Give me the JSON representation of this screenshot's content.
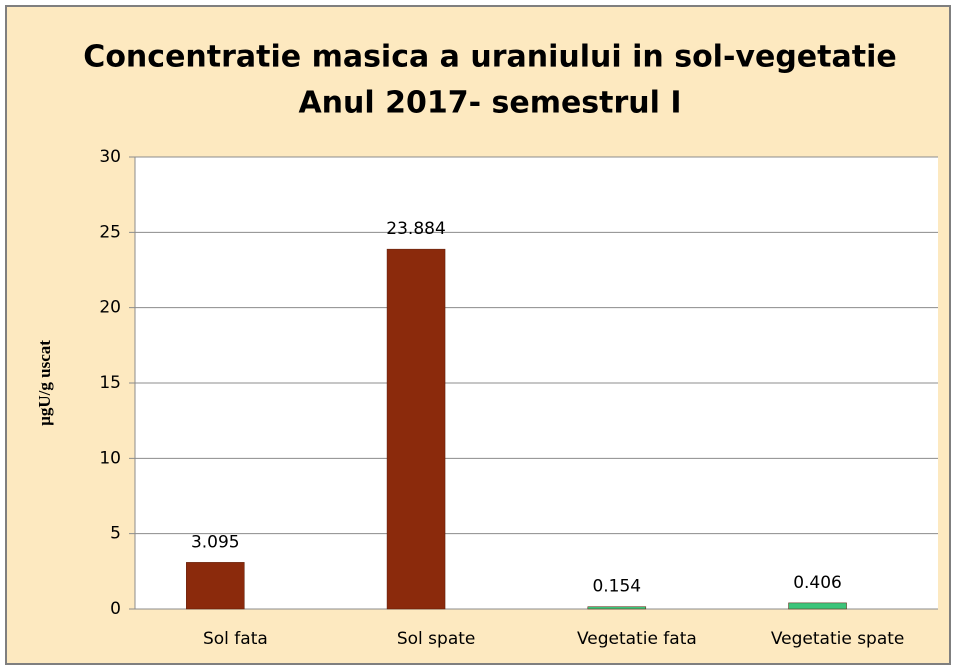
{
  "chart_data": {
    "type": "bar",
    "title": "Concentratie masica a uraniului in sol-vegetatie",
    "subtitle": "Anul 2017- semestrul I",
    "ylabel": "µgU/g uscat",
    "categories": [
      "Sol fata",
      "Sol spate",
      "Vegetatie fata",
      "Vegetatie spate"
    ],
    "values": [
      3.095,
      23.884,
      0.154,
      0.406
    ],
    "colors": [
      "#8b2a0c",
      "#8b2a0c",
      "#3cc47a",
      "#3cc47a"
    ],
    "ylim": [
      0,
      30
    ],
    "yticks": [
      0,
      5,
      10,
      15,
      20,
      25,
      30
    ],
    "grid": true
  }
}
